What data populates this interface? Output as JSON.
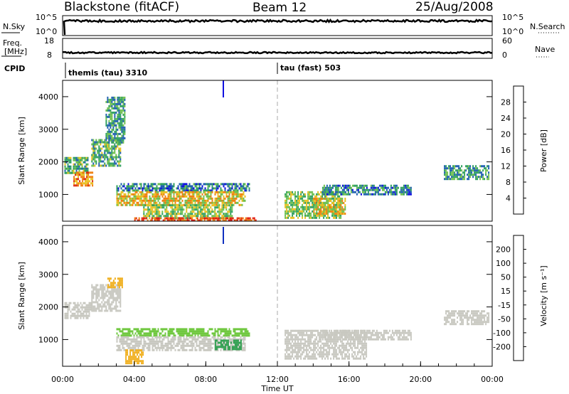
{
  "header": {
    "station": "Blackstone (fitACF)",
    "beam": "Beam 12",
    "date": "25/Aug/2008"
  },
  "panels": {
    "nsky_label": "N.Sky",
    "nsky_ticks": [
      "10^5",
      "10^0"
    ],
    "nsky_right_ticks": [
      "10^5",
      "10^0"
    ],
    "nsearch_label": "N.Search",
    "freq_label_1": "Freq.",
    "freq_label_2": "[MHz]",
    "freq_ticks": [
      "18",
      "8"
    ],
    "nave_ticks": [
      "60",
      "0"
    ],
    "nave_label": "Nave",
    "cpid_label": "CPID",
    "cpid_1": "themis (tau) 3310",
    "cpid_2": "tau (fast) 503"
  },
  "axes": {
    "ylabel": "Slant Range [km]",
    "xlabel": "Time UT",
    "yticks": [
      "1000",
      "2000",
      "3000",
      "4000"
    ],
    "xticks": [
      "00:00",
      "04:00",
      "08:00",
      "12:00",
      "16:00",
      "20:00",
      "00:00"
    ]
  },
  "power_scale": {
    "label": "Power [dB]",
    "ticks": [
      "4",
      "8",
      "12",
      "16",
      "20",
      "24",
      "28"
    ],
    "colors": [
      "#1010e0",
      "#2060b0",
      "#30a060",
      "#70c050",
      "#e8c020",
      "#f08010",
      "#e03010",
      "#e01010"
    ]
  },
  "velocity_scale": {
    "label": "Velocity [m s⁻¹]",
    "ticks": [
      "200",
      "100",
      "50",
      "15",
      "-15",
      "-50",
      "-100",
      "-200"
    ],
    "colors": [
      "#1030c0",
      "#2070a0",
      "#30a050",
      "#70c840",
      "#c8c8c0",
      "#f0b020",
      "#f07010",
      "#e03010",
      "#e01010"
    ]
  },
  "chart_data": {
    "type": "heatmap",
    "x_range_hours": [
      0,
      24
    ],
    "y_range_km": [
      180,
      4500
    ],
    "power_regions": [
      {
        "t0": 0.1,
        "t1": 1.4,
        "r0": 1650,
        "r1": 2150,
        "value": 12
      },
      {
        "t0": 0.6,
        "t1": 1.7,
        "r0": 1300,
        "r1": 1700,
        "value": 22
      },
      {
        "t0": 1.6,
        "t1": 3.2,
        "r0": 1900,
        "r1": 2700,
        "value": 12
      },
      {
        "t0": 2.4,
        "t1": 3.5,
        "r0": 2600,
        "r1": 4000,
        "value": 10
      },
      {
        "t0": 3.0,
        "t1": 10.4,
        "r0": 1100,
        "r1": 1350,
        "value": 8
      },
      {
        "t0": 3.0,
        "t1": 10.2,
        "r0": 700,
        "r1": 1100,
        "value": 18
      },
      {
        "t0": 4.5,
        "t1": 9.5,
        "r0": 300,
        "r1": 700,
        "value": 14
      },
      {
        "t0": 4.0,
        "t1": 10.8,
        "r0": 190,
        "r1": 300,
        "value": 26
      },
      {
        "t0": 12.4,
        "t1": 15.5,
        "r0": 300,
        "r1": 1100,
        "value": 14
      },
      {
        "t0": 14.5,
        "t1": 19.5,
        "r0": 1000,
        "r1": 1300,
        "value": 8
      },
      {
        "t0": 14.0,
        "t1": 15.8,
        "r0": 400,
        "r1": 900,
        "value": 18
      },
      {
        "t0": 21.3,
        "t1": 23.8,
        "r0": 1500,
        "r1": 1900,
        "value": 10
      }
    ],
    "velocity_regions": [
      {
        "t0": 0.1,
        "t1": 1.6,
        "r0": 1650,
        "r1": 2150,
        "value": 0
      },
      {
        "t0": 1.6,
        "t1": 3.2,
        "r0": 1900,
        "r1": 2700,
        "value": 0
      },
      {
        "t0": 2.5,
        "t1": 3.3,
        "r0": 2600,
        "r1": 2900,
        "value": -40
      },
      {
        "t0": 3.0,
        "t1": 10.4,
        "r0": 1100,
        "r1": 1350,
        "value": 40
      },
      {
        "t0": 3.0,
        "t1": 10.2,
        "r0": 700,
        "r1": 1100,
        "value": 0
      },
      {
        "t0": 3.5,
        "t1": 4.5,
        "r0": 300,
        "r1": 700,
        "value": -30
      },
      {
        "t0": 8.5,
        "t1": 10.0,
        "r0": 700,
        "r1": 1000,
        "value": 60
      },
      {
        "t0": 12.4,
        "t1": 17.0,
        "r0": 400,
        "r1": 1300,
        "value": 0
      },
      {
        "t0": 14.5,
        "t1": 19.5,
        "r0": 1000,
        "r1": 1300,
        "value": 0
      },
      {
        "t0": 21.3,
        "t1": 23.8,
        "r0": 1500,
        "r1": 1900,
        "value": 0
      }
    ]
  }
}
